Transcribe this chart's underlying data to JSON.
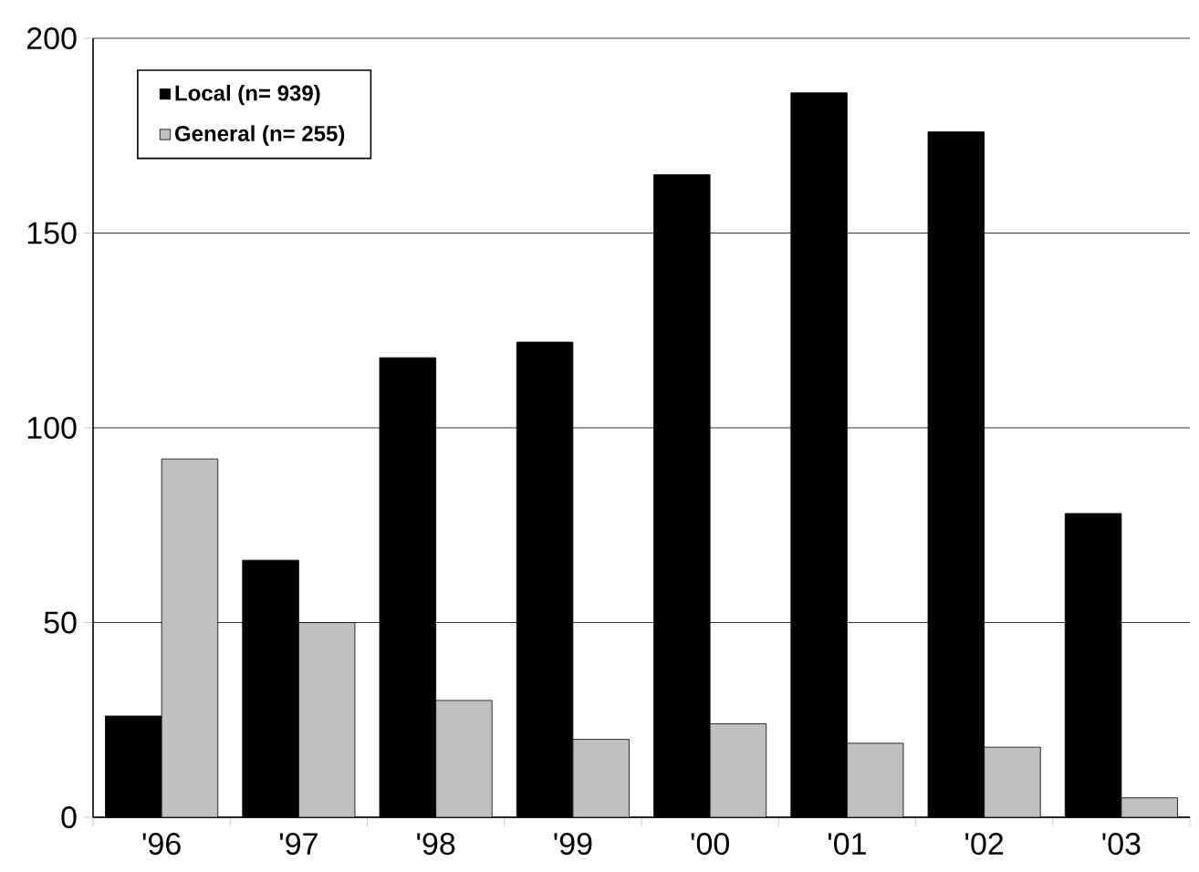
{
  "chart_data": {
    "type": "bar",
    "categories": [
      "'96",
      "'97",
      "'98",
      "'99",
      "'00",
      "'01",
      "'02",
      "'03"
    ],
    "series": [
      {
        "name": "Local (n= 939)",
        "color": "#000000",
        "values": [
          26,
          66,
          118,
          122,
          165,
          186,
          176,
          78
        ]
      },
      {
        "name": "General (n= 255)",
        "color": "#c0c0c0",
        "values": [
          92,
          50,
          30,
          20,
          24,
          19,
          18,
          5
        ]
      }
    ],
    "ylim": [
      0,
      200
    ],
    "yticks": [
      0,
      50,
      100,
      150,
      200
    ],
    "grid": "y",
    "legend": "top left"
  }
}
